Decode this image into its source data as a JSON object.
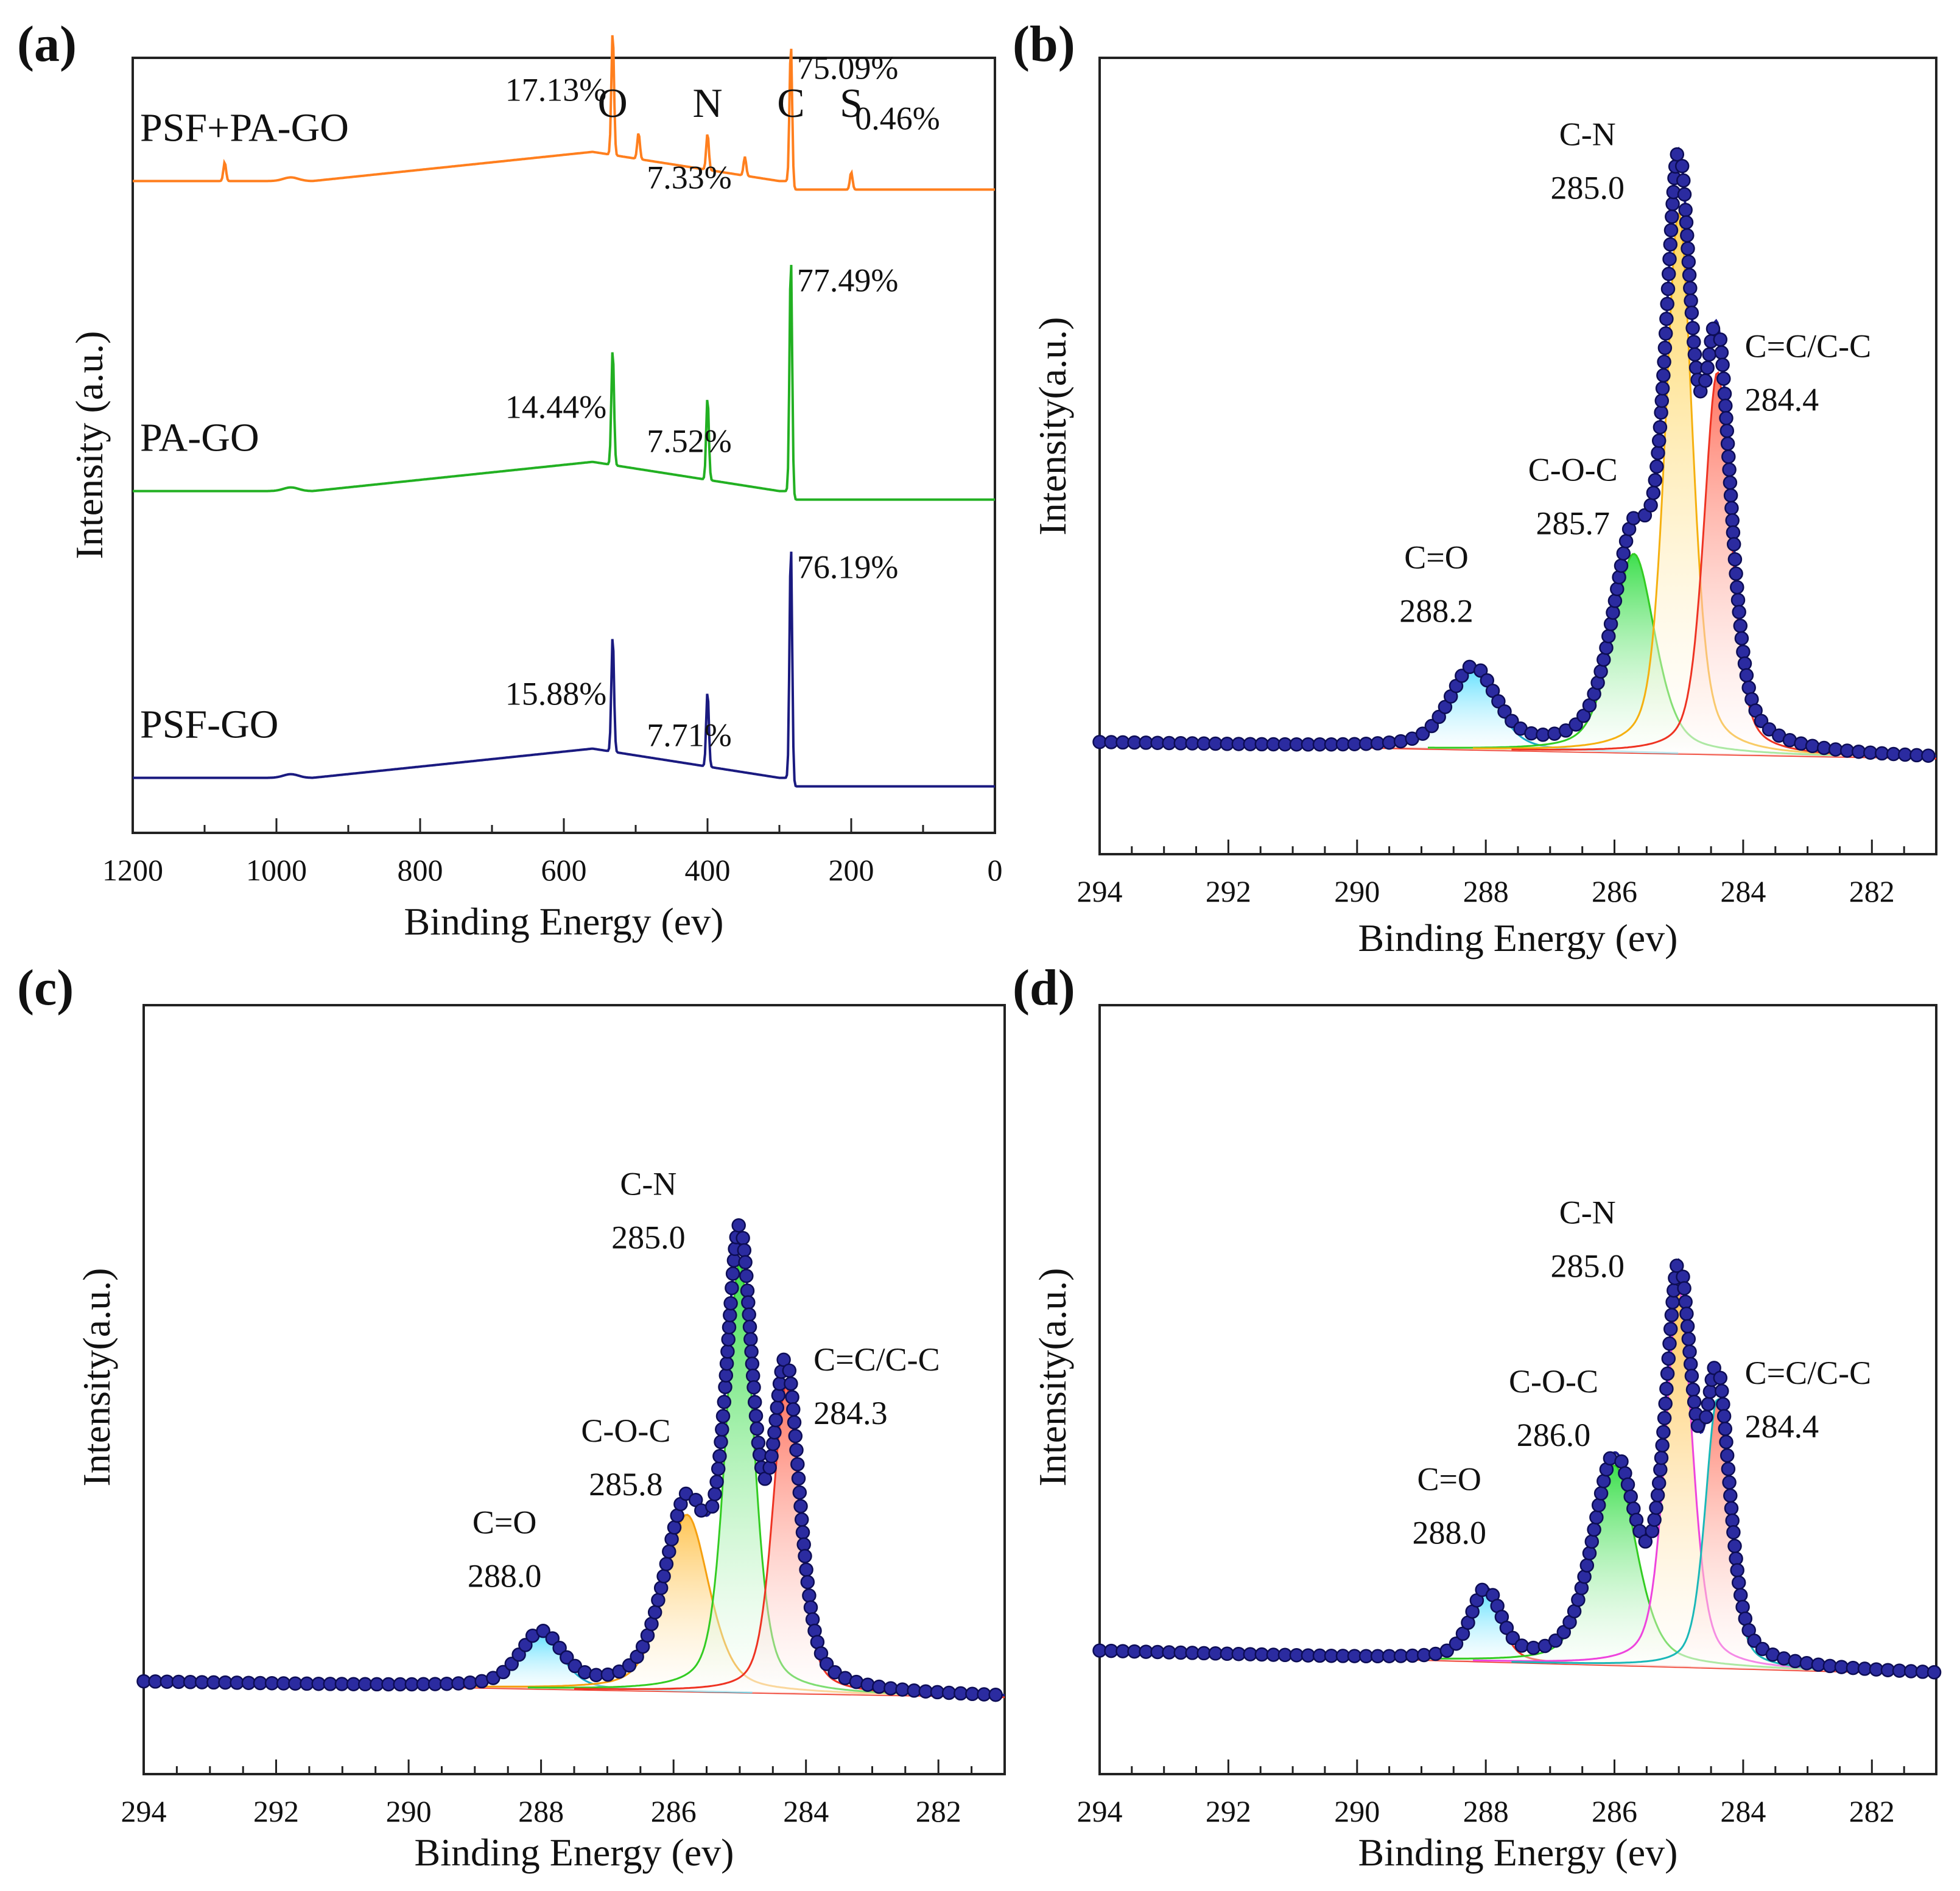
{
  "chart_data": [
    {
      "panel": "(a)",
      "type": "line",
      "xlabel": "Binding Energy (ev)",
      "ylabel": "Intensity (a.u.)",
      "xlim": [
        1200,
        0
      ],
      "x_ticks": [
        "1200",
        "1000",
        "800",
        "600",
        "400",
        "200",
        "0"
      ],
      "element_labels": [
        {
          "label": "O",
          "x": 532
        },
        {
          "label": "N",
          "x": 400
        },
        {
          "label": "C",
          "x": 284
        },
        {
          "label": "S",
          "x": 200
        }
      ],
      "series": [
        {
          "name": "PSF+PA-GO",
          "color": "#ff7f1e",
          "offset": 0.83,
          "scale": 0.6,
          "peaks": [
            {
              "x": 532,
              "height": 0.85
            },
            {
              "x": 400,
              "height": 0.25
            },
            {
              "x": 284,
              "height": 1.0
            },
            {
              "x": 200,
              "height": 0.12
            },
            {
              "x": 1072,
              "height": 0.13
            },
            {
              "x": 496,
              "height": 0.18
            },
            {
              "x": 348,
              "height": 0.13
            }
          ],
          "annotations": [
            {
              "text": "17.13%",
              "element": "O"
            },
            {
              "text": "7.33%",
              "element": "N"
            },
            {
              "text": "75.09%",
              "element": "C"
            },
            {
              "text": "0.46%",
              "element": "S"
            }
          ]
        },
        {
          "name": "PA-GO",
          "color": "#22b022",
          "offset": 0.43,
          "scale": 1.0,
          "peaks": [
            {
              "x": 532,
              "height": 0.48
            },
            {
              "x": 400,
              "height": 0.34
            },
            {
              "x": 284,
              "height": 1.0
            }
          ],
          "annotations": [
            {
              "text": "14.44%",
              "element": "O"
            },
            {
              "text": "7.52%",
              "element": "N"
            },
            {
              "text": "77.49%",
              "element": "C"
            }
          ]
        },
        {
          "name": "PSF-GO",
          "color": "#1a1a80",
          "offset": 0.06,
          "scale": 1.0,
          "peaks": [
            {
              "x": 532,
              "height": 0.48
            },
            {
              "x": 400,
              "height": 0.31
            },
            {
              "x": 284,
              "height": 1.0
            }
          ],
          "annotations": [
            {
              "text": "15.88%",
              "element": "O"
            },
            {
              "text": "7.71%",
              "element": "N"
            },
            {
              "text": "76.19%",
              "element": "C"
            }
          ]
        }
      ]
    },
    {
      "panel": "(b)",
      "type": "line",
      "xlabel": "Binding Energy (ev)",
      "ylabel": "Intensity(a.u.)",
      "xlim": [
        294,
        281
      ],
      "ylim": [
        0,
        1
      ],
      "x_ticks": [
        "294",
        "292",
        "290",
        "288",
        "286",
        "284",
        "282"
      ],
      "baseline": [
        0.14,
        0.12
      ],
      "envelope_color": "#1a1a8c",
      "marker_color": "#2b2ba0",
      "components": [
        {
          "name": "C=O",
          "label": "C=O",
          "position_label": "288.2",
          "center": 288.2,
          "amplitude": 0.1,
          "width": 0.85,
          "color": "#1aa8c8",
          "fill": "#5fe0ff"
        },
        {
          "name": "C-O-C",
          "label": "C-O-C",
          "position_label": "285.7",
          "center": 285.7,
          "amplitude": 0.25,
          "width": 0.78,
          "color": "#33cc22",
          "fill": "#33dd44"
        },
        {
          "name": "C-N",
          "label": "C-N",
          "position_label": "285.0",
          "center": 285.0,
          "amplitude": 0.68,
          "width": 0.5,
          "color": "#f5b010",
          "fill": "#ffd250"
        },
        {
          "name": "C=C/C-C",
          "label": "C=C/C-C",
          "position_label": "284.4",
          "center": 284.4,
          "amplitude": 0.48,
          "width": 0.5,
          "color": "#ee3322",
          "fill": "#ff6a55"
        }
      ]
    },
    {
      "panel": "(c)",
      "type": "line",
      "xlabel": "Binding Energy (ev)",
      "ylabel": "Intensity(a.u.)",
      "xlim": [
        294,
        281
      ],
      "ylim": [
        0,
        1
      ],
      "x_ticks": [
        "294",
        "292",
        "290",
        "288",
        "286",
        "284",
        "282"
      ],
      "baseline": [
        0.12,
        0.1
      ],
      "envelope_color": "#1a1a8c",
      "marker_color": "#2b2ba0",
      "components": [
        {
          "name": "C=O",
          "label": "C=O",
          "position_label": "288.0",
          "center": 288.0,
          "amplitude": 0.07,
          "width": 0.75,
          "color": "#1aa8c8",
          "fill": "#5fe0ff"
        },
        {
          "name": "C-O-C",
          "label": "C-O-C",
          "position_label": "285.8",
          "center": 285.8,
          "amplitude": 0.23,
          "width": 0.8,
          "color": "#f5a010",
          "fill": "#ffc24a"
        },
        {
          "name": "C-N",
          "label": "C-N",
          "position_label": "285.0",
          "center": 285.0,
          "amplitude": 0.56,
          "width": 0.5,
          "color": "#33cc22",
          "fill": "#33dd44"
        },
        {
          "name": "C=C/C-C",
          "label": "C=C/C-C",
          "position_label": "284.3",
          "center": 284.3,
          "amplitude": 0.4,
          "width": 0.48,
          "color": "#ee3322",
          "fill": "#ff6a55"
        }
      ]
    },
    {
      "panel": "(d)",
      "type": "line",
      "xlabel": "Binding Energy (ev)",
      "ylabel": "Intensity(a.u.)",
      "xlim": [
        294,
        281
      ],
      "ylim": [
        0,
        1
      ],
      "x_ticks": [
        "294",
        "292",
        "290",
        "288",
        "286",
        "284",
        "282"
      ],
      "baseline": [
        0.16,
        0.13
      ],
      "envelope_color": "#1a1a8c",
      "marker_color": "#2b2ba0",
      "components": [
        {
          "name": "C=O",
          "label": "C=O",
          "position_label": "288.0",
          "center": 288.0,
          "amplitude": 0.09,
          "width": 0.55,
          "color": "#ee3322",
          "fill": "#5fe0ff"
        },
        {
          "name": "C-O-C",
          "label": "C-O-C",
          "position_label": "286.0",
          "center": 286.0,
          "amplitude": 0.26,
          "width": 0.8,
          "color": "#33cc22",
          "fill": "#33dd44"
        },
        {
          "name": "C-N",
          "label": "C-N",
          "position_label": "285.0",
          "center": 285.0,
          "amplitude": 0.49,
          "width": 0.5,
          "color": "#ee44dd",
          "fill": "#ffc24a"
        },
        {
          "name": "C=C/C-C",
          "label": "C=C/C-C",
          "position_label": "284.4",
          "center": 284.4,
          "amplitude": 0.35,
          "width": 0.45,
          "color": "#1ab8b8",
          "fill": "#ff7a66"
        }
      ]
    }
  ]
}
